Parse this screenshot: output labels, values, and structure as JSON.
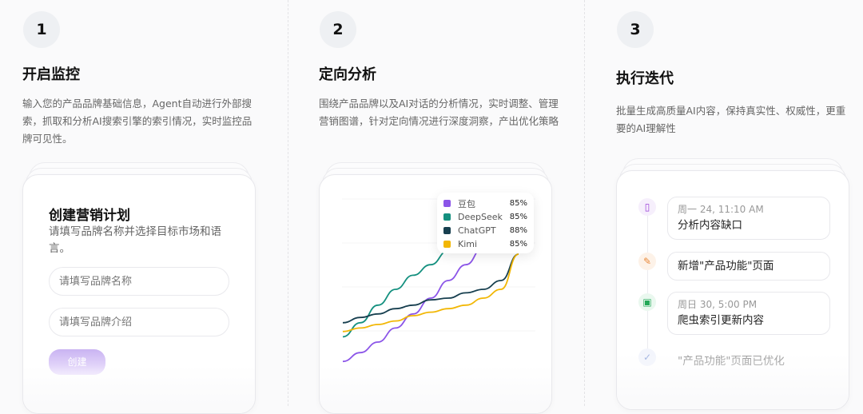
{
  "steps": [
    {
      "number": "1",
      "title": "开启监控",
      "desc": "输入您的产品品牌基础信息，Agent自动进行外部搜索，抓取和分析AI搜索引擎的索引情况，实时监控品牌可见性。"
    },
    {
      "number": "2",
      "title": "定向分析",
      "desc": "围绕产品品牌以及AI对话的分析情况，实时调整、管理营销图谱，针对定向情况进行深度洞察，产出优化策略"
    },
    {
      "number": "3",
      "title": "执行迭代",
      "desc": "批量生成高质量AI内容，保持真实性、权威性，更重要的AI理解性"
    }
  ],
  "form": {
    "title": "创建营销计划",
    "subtitle": "请填写品牌名称并选择目标市场和语言。",
    "name_placeholder": "请填写品牌名称",
    "intro_placeholder": "请填写品牌介绍",
    "create_label": "创建"
  },
  "chart_data": {
    "type": "line",
    "grid": true,
    "legend": "top-right",
    "series": [
      {
        "name": "豆包",
        "value": "85%",
        "color": "#8b55e8",
        "values": [
          4,
          9,
          15,
          23,
          31,
          40,
          50,
          59,
          69,
          81,
          95
        ]
      },
      {
        "name": "DeepSeek",
        "value": "85%",
        "color": "#14907f",
        "values": [
          18,
          26,
          36,
          45,
          53,
          59,
          67,
          75,
          82,
          89,
          95
        ]
      },
      {
        "name": "ChatGPT",
        "value": "88%",
        "color": "#173f4f",
        "values": [
          26,
          29,
          31,
          34,
          36,
          39,
          40,
          43,
          45,
          50,
          65
        ]
      },
      {
        "name": "Kimi",
        "value": "85%",
        "color": "#f2b705",
        "values": [
          21,
          23,
          25,
          27,
          30,
          32,
          34,
          36,
          40,
          45,
          65
        ]
      }
    ]
  },
  "timeline": [
    {
      "icon": "clipboard-icon",
      "time": "周一 24, 11:10 AM",
      "text": "分析内容缺口",
      "color": "#9b3fd8",
      "bg": "#f6effc"
    },
    {
      "icon": "pencil-icon",
      "time": "",
      "text": "新增\"产品功能\"页面",
      "color": "#e8893a",
      "bg": "#fdf2e8"
    },
    {
      "icon": "calendar-icon",
      "time": "周日 30, 5:00 PM",
      "text": "爬虫索引更新内容",
      "color": "#22a857",
      "bg": "#eaf8ef"
    },
    {
      "icon": "check-circle-icon",
      "time": "",
      "text": "\"产品功能\"页面已优化",
      "color": "#9fb2e0",
      "bg": "#f3f5fc"
    }
  ]
}
